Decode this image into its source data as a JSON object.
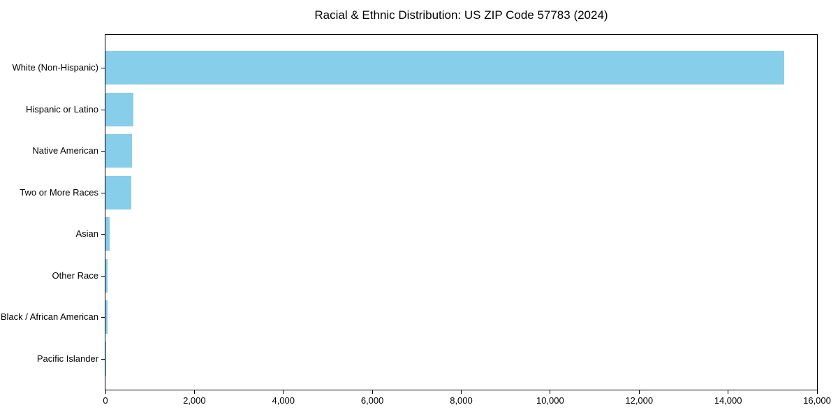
{
  "chart_data": {
    "type": "bar",
    "orientation": "horizontal",
    "title": "Racial & Ethnic Distribution: US ZIP Code 57783 (2024)",
    "xlabel": "",
    "ylabel": "",
    "categories": [
      "White (Non-Hispanic)",
      "Hispanic or Latino",
      "Native American",
      "Two or More Races",
      "Asian",
      "Other Race",
      "Black / African American",
      "Pacific Islander"
    ],
    "values": [
      15260,
      630,
      600,
      580,
      90,
      45,
      42,
      5
    ],
    "xlim": [
      0,
      16000
    ],
    "xticks": [
      0,
      2000,
      4000,
      6000,
      8000,
      10000,
      12000,
      14000,
      16000
    ],
    "xtick_labels": [
      "0",
      "2,000",
      "4,000",
      "6,000",
      "8,000",
      "10,000",
      "12,000",
      "14,000",
      "16,000"
    ],
    "grid": false,
    "legend_position": "none",
    "colors": {
      "bar": "#87CEEB",
      "spine": "#000000",
      "text": "#000000",
      "background": "#ffffff"
    }
  }
}
